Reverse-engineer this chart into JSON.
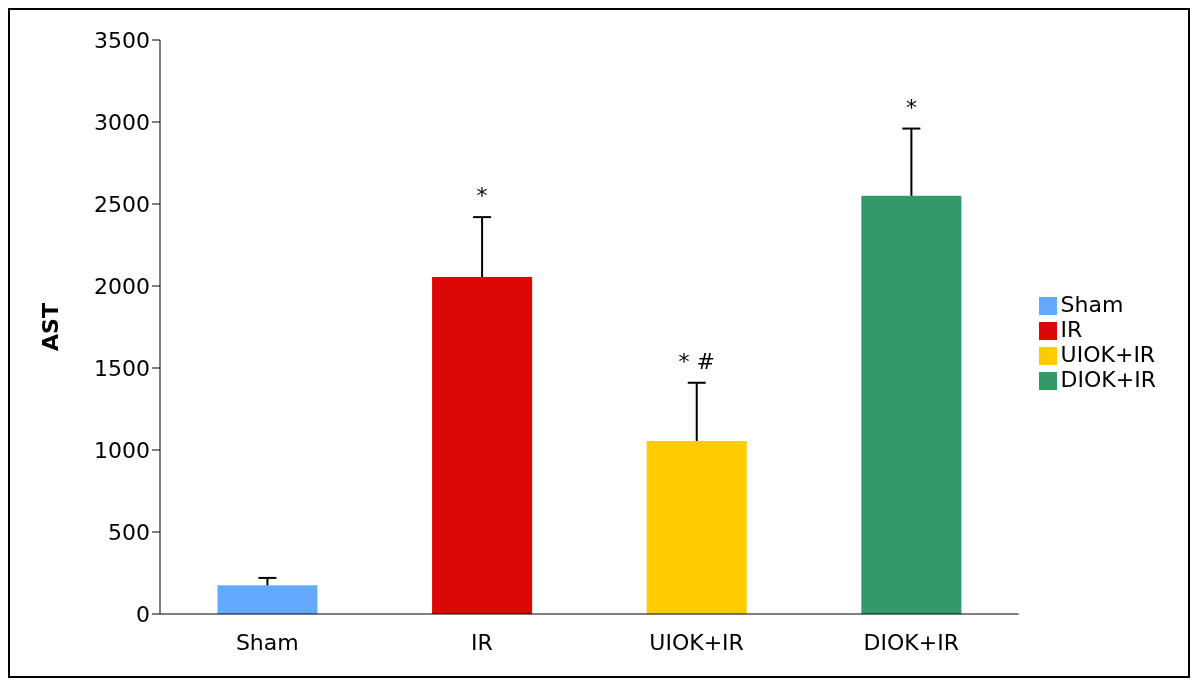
{
  "chart_data": {
    "type": "bar",
    "ylabel": "AST",
    "categories": [
      "Sham",
      "IR",
      "UIOK+IR",
      "DIOK+IR"
    ],
    "stacked": true,
    "series": [
      {
        "name": "Sham",
        "color": "#62a9ff",
        "values": [
          175,
          null,
          null,
          null
        ],
        "errors": [
          [
            175,
            220
          ],
          null,
          null,
          null
        ]
      },
      {
        "name": "IR",
        "color": "#dc0805",
        "values": [
          null,
          2055,
          null,
          null
        ],
        "errors": [
          null,
          [
            2055,
            2420
          ],
          null,
          null
        ]
      },
      {
        "name": "UIOK+IR",
        "color": "#ffcc00",
        "values": [
          null,
          null,
          1055,
          null
        ],
        "errors": [
          null,
          null,
          [
            1055,
            1410
          ],
          null
        ]
      },
      {
        "name": "DIOK+IR",
        "color": "#339966",
        "values": [
          null,
          null,
          null,
          2550
        ],
        "errors": [
          null,
          null,
          null,
          [
            2550,
            2960
          ]
        ]
      }
    ],
    "ylim": [
      0,
      3500
    ],
    "yticks": [
      0,
      500,
      1000,
      1500,
      2000,
      2500,
      3000,
      3500
    ],
    "grid": false,
    "legend": "right",
    "annotations": [
      {
        "text": "*",
        "x": "IR",
        "y": 2420
      },
      {
        "text": "* #",
        "x": "UIOK+IR",
        "y": 1410
      },
      {
        "text": "*",
        "x": "DIOK+IR",
        "y": 2960
      }
    ]
  }
}
